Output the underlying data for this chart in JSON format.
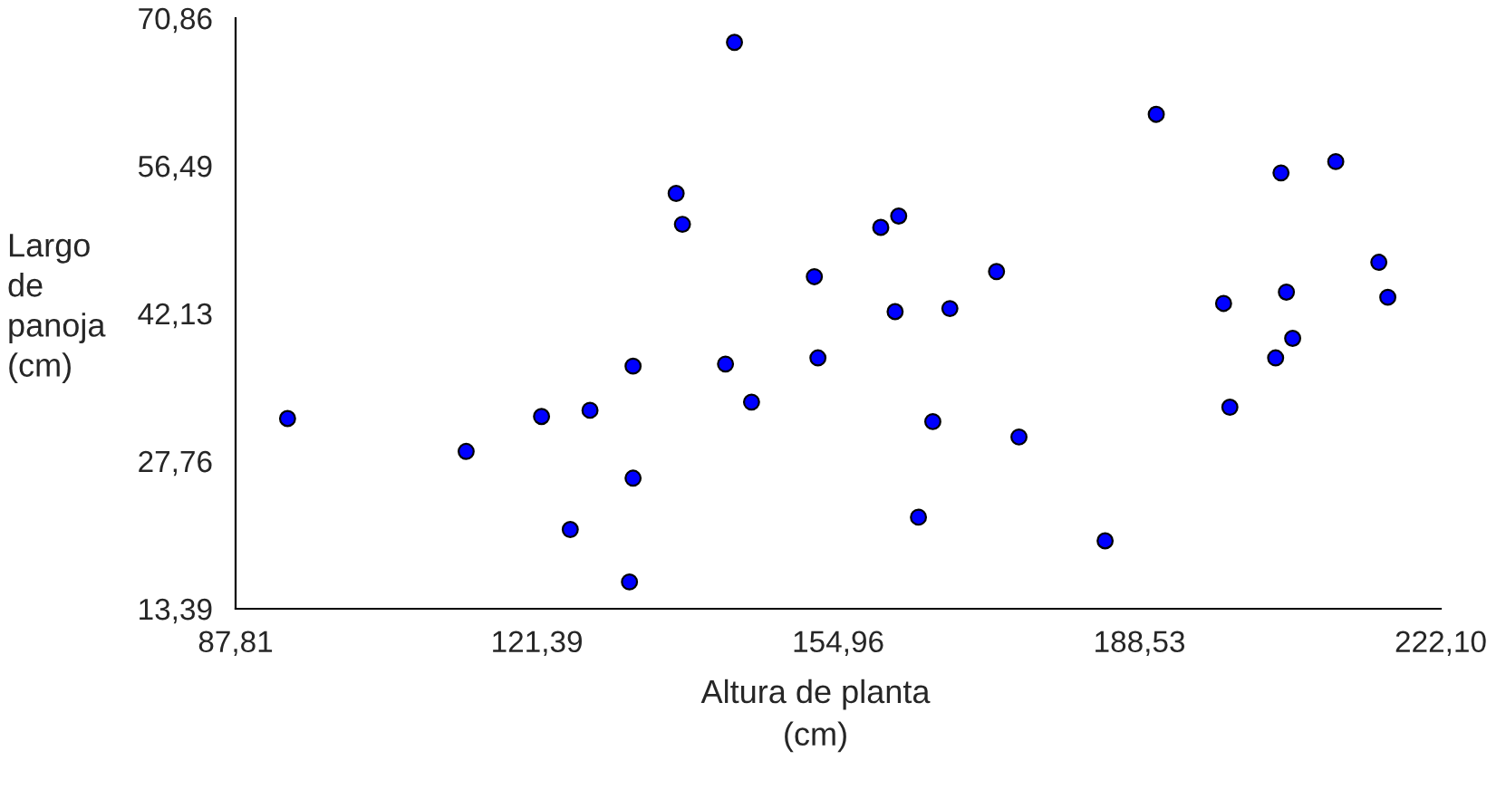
{
  "chart_data": {
    "type": "scatter",
    "xlabel": "Altura de planta (cm)",
    "ylabel": "Largo de panoja (cm)",
    "x": [
      93.6,
      113.5,
      121.9,
      127.3,
      125.1,
      132.1,
      132.1,
      131.7,
      136.9,
      137.6,
      143.4,
      142.4,
      145.3,
      152.3,
      152.7,
      159.7,
      161.7,
      161.3,
      167.4,
      172.6,
      165.5,
      175.1,
      163.9,
      184.7,
      190.4,
      204.3,
      210.4,
      197.9,
      204.9,
      215.2,
      216.2,
      205.6,
      203.7,
      198.6
    ],
    "values": [
      31.9,
      28.7,
      32.1,
      32.7,
      21.1,
      37.0,
      26.1,
      16.0,
      53.8,
      50.8,
      68.5,
      37.2,
      33.5,
      45.7,
      37.8,
      50.5,
      51.6,
      42.3,
      42.6,
      46.2,
      31.6,
      30.1,
      22.3,
      20.0,
      61.5,
      55.8,
      56.9,
      43.1,
      44.2,
      47.1,
      43.7,
      39.7,
      37.8,
      33.0
    ],
    "color": "#0000ff",
    "marker": "circle",
    "grid": false,
    "legend": false,
    "xlim": [
      87.81,
      222.1
    ],
    "ylim": [
      13.39,
      70.86
    ],
    "xticks": [
      {
        "value": 87.81,
        "label": "87,81"
      },
      {
        "value": 121.39,
        "label": "121,39"
      },
      {
        "value": 154.96,
        "label": "154,96"
      },
      {
        "value": 188.53,
        "label": "188,53"
      },
      {
        "value": 222.1,
        "label": "222,10"
      }
    ],
    "yticks": [
      {
        "value": 13.39,
        "label": "13,39"
      },
      {
        "value": 27.76,
        "label": "27,76"
      },
      {
        "value": 42.13,
        "label": "42,13"
      },
      {
        "value": 56.49,
        "label": "56,49"
      },
      {
        "value": 70.86,
        "label": "70,86"
      }
    ]
  }
}
